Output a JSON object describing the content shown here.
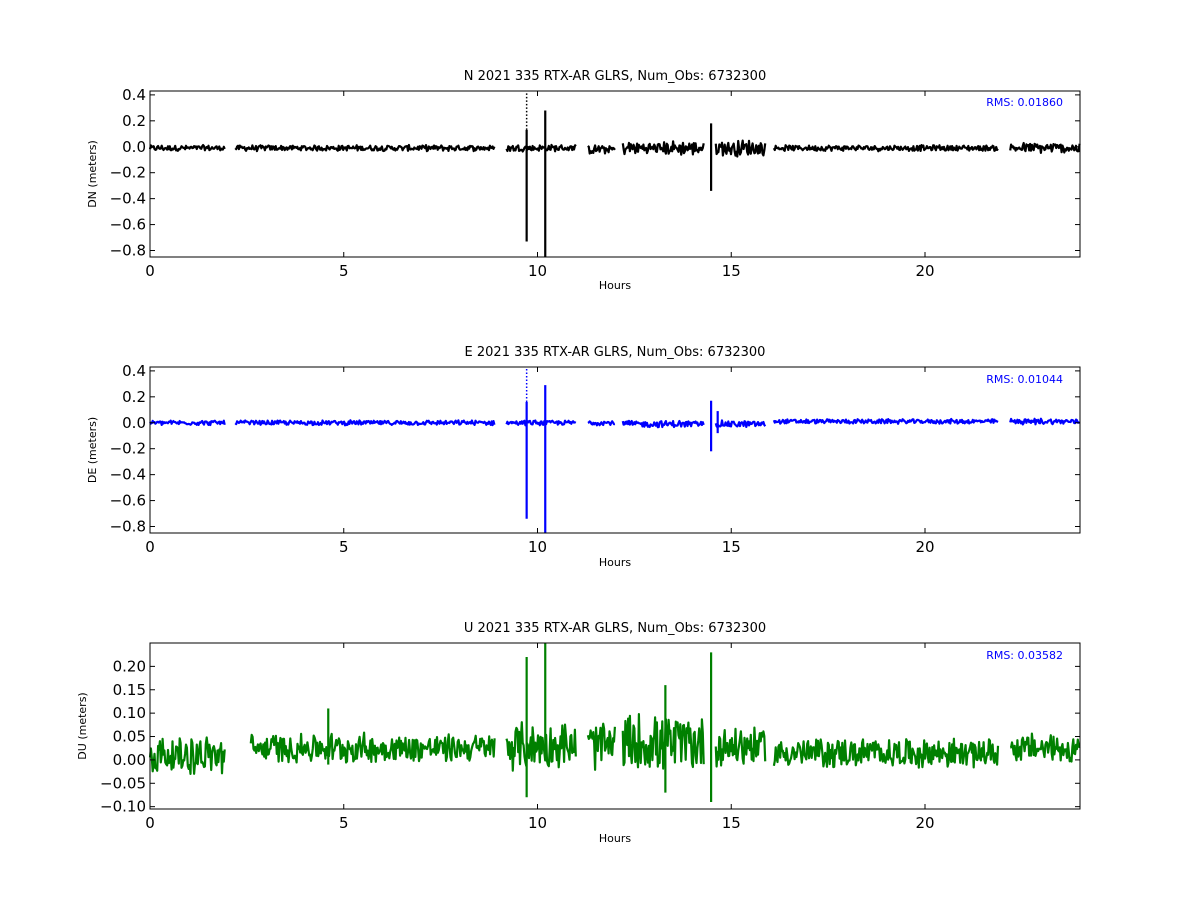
{
  "chart_data": [
    {
      "type": "line",
      "title": "N 2021 335 RTX-AR  GLRS, Num_Obs: 6732300",
      "xlabel": "Hours",
      "ylabel": "DN (meters)",
      "xlim": [
        0,
        24
      ],
      "ylim": [
        -0.85,
        0.43
      ],
      "xticks": [
        0,
        5,
        10,
        15,
        20
      ],
      "xtick_labels": [
        "0",
        "5",
        "10",
        "15",
        "20"
      ],
      "yticks": [
        0.4,
        0.2,
        0.0,
        -0.2,
        -0.4,
        -0.6,
        -0.8
      ],
      "ytick_labels": [
        "0.4",
        "0.2",
        "0.0",
        "−0.2",
        "−0.4",
        "−0.6",
        "−0.8"
      ],
      "annotation": "RMS:  0.01860",
      "color": "#000000",
      "grid": false,
      "series": [
        {
          "band_segments": [
            {
              "x": [
                0.0,
                1.95
              ],
              "center": -0.01,
              "half_width": 0.025
            },
            {
              "x": [
                2.2,
                8.9
              ],
              "center": -0.01,
              "half_width": 0.025
            },
            {
              "x": [
                9.2,
                11.0
              ],
              "center": -0.01,
              "half_width": 0.03
            },
            {
              "x": [
                11.3,
                12.0
              ],
              "center": -0.02,
              "half_width": 0.04
            },
            {
              "x": [
                12.2,
                14.3
              ],
              "center": -0.01,
              "half_width": 0.06
            },
            {
              "x": [
                14.6,
                15.9
              ],
              "center": -0.01,
              "half_width": 0.07
            },
            {
              "x": [
                16.1,
                21.9
              ],
              "center": -0.01,
              "half_width": 0.025
            },
            {
              "x": [
                22.2,
                24.0
              ],
              "center": -0.01,
              "half_width": 0.045
            }
          ],
          "spikes": [
            {
              "x": 9.72,
              "y": [
                -0.73,
                0.13
              ]
            },
            {
              "x": 10.2,
              "y": [
                -0.85,
                0.28
              ]
            },
            {
              "x": 14.48,
              "y": [
                -0.34,
                0.18
              ]
            }
          ],
          "dotted_spikes": [
            {
              "x": 9.72,
              "y": [
                0.13,
                0.43
              ]
            }
          ]
        }
      ]
    },
    {
      "type": "line",
      "title": "E 2021 335 RTX-AR  GLRS, Num_Obs: 6732300",
      "xlabel": "Hours",
      "ylabel": "DE (meters)",
      "xlim": [
        0,
        24
      ],
      "ylim": [
        -0.85,
        0.43
      ],
      "xticks": [
        0,
        5,
        10,
        15,
        20
      ],
      "xtick_labels": [
        "0",
        "5",
        "10",
        "15",
        "20"
      ],
      "yticks": [
        0.4,
        0.2,
        0.0,
        -0.2,
        -0.4,
        -0.6,
        -0.8
      ],
      "ytick_labels": [
        "0.4",
        "0.2",
        "0.0",
        "−0.2",
        "−0.4",
        "−0.6",
        "−0.8"
      ],
      "annotation": "RMS:  0.01044",
      "color": "#0000ff",
      "grid": false,
      "series": [
        {
          "band_segments": [
            {
              "x": [
                0.0,
                1.95
              ],
              "center": 0.0,
              "half_width": 0.02
            },
            {
              "x": [
                2.2,
                8.9
              ],
              "center": 0.0,
              "half_width": 0.02
            },
            {
              "x": [
                9.2,
                11.0
              ],
              "center": 0.0,
              "half_width": 0.02
            },
            {
              "x": [
                11.3,
                12.0
              ],
              "center": 0.0,
              "half_width": 0.02
            },
            {
              "x": [
                12.2,
                14.3
              ],
              "center": -0.01,
              "half_width": 0.03
            },
            {
              "x": [
                14.6,
                15.9
              ],
              "center": -0.01,
              "half_width": 0.03
            },
            {
              "x": [
                16.1,
                21.9
              ],
              "center": 0.01,
              "half_width": 0.02
            },
            {
              "x": [
                22.2,
                24.0
              ],
              "center": 0.01,
              "half_width": 0.025
            }
          ],
          "spikes": [
            {
              "x": 9.72,
              "y": [
                -0.74,
                0.16
              ]
            },
            {
              "x": 10.2,
              "y": [
                -0.85,
                0.29
              ]
            },
            {
              "x": 14.48,
              "y": [
                -0.22,
                0.17
              ]
            },
            {
              "x": 14.65,
              "y": [
                -0.08,
                0.09
              ]
            }
          ],
          "dotted_spikes": [
            {
              "x": 9.72,
              "y": [
                0.16,
                0.43
              ]
            }
          ]
        }
      ]
    },
    {
      "type": "line",
      "title": "U 2021 335 RTX-AR  GLRS, Num_Obs: 6732300",
      "xlabel": "Hours",
      "ylabel": "DU (meters)",
      "xlim": [
        0,
        24
      ],
      "ylim": [
        -0.105,
        0.25
      ],
      "xticks": [
        0,
        5,
        10,
        15,
        20
      ],
      "xtick_labels": [
        "0",
        "5",
        "10",
        "15",
        "20"
      ],
      "yticks": [
        0.2,
        0.15,
        0.1,
        0.05,
        0.0,
        -0.05,
        -0.1
      ],
      "ytick_labels": [
        "0.20",
        "0.15",
        "0.10",
        "0.05",
        "0.00",
        "−0.05",
        "−0.10"
      ],
      "annotation": "RMS:  0.03582",
      "color": "#008000",
      "grid": false,
      "series": [
        {
          "band_segments": [
            {
              "x": [
                0.0,
                1.95
              ],
              "center": 0.01,
              "half_width": 0.045
            },
            {
              "x": [
                2.6,
                8.9
              ],
              "center": 0.025,
              "half_width": 0.035
            },
            {
              "x": [
                9.2,
                11.0
              ],
              "center": 0.03,
              "half_width": 0.055
            },
            {
              "x": [
                11.3,
                12.0
              ],
              "center": 0.03,
              "half_width": 0.06
            },
            {
              "x": [
                12.2,
                14.3
              ],
              "center": 0.035,
              "half_width": 0.07
            },
            {
              "x": [
                14.6,
                15.9
              ],
              "center": 0.03,
              "half_width": 0.05
            },
            {
              "x": [
                16.1,
                21.9
              ],
              "center": 0.015,
              "half_width": 0.035
            },
            {
              "x": [
                22.2,
                24.0
              ],
              "center": 0.025,
              "half_width": 0.035
            }
          ],
          "spikes": [
            {
              "x": 9.72,
              "y": [
                -0.08,
                0.22
              ]
            },
            {
              "x": 10.2,
              "y": [
                0.0,
                0.25
              ]
            },
            {
              "x": 14.48,
              "y": [
                -0.09,
                0.23
              ]
            },
            {
              "x": 4.6,
              "y": [
                -0.01,
                0.11
              ]
            },
            {
              "x": 13.3,
              "y": [
                -0.07,
                0.16
              ]
            }
          ],
          "dotted_spikes": []
        }
      ]
    }
  ]
}
